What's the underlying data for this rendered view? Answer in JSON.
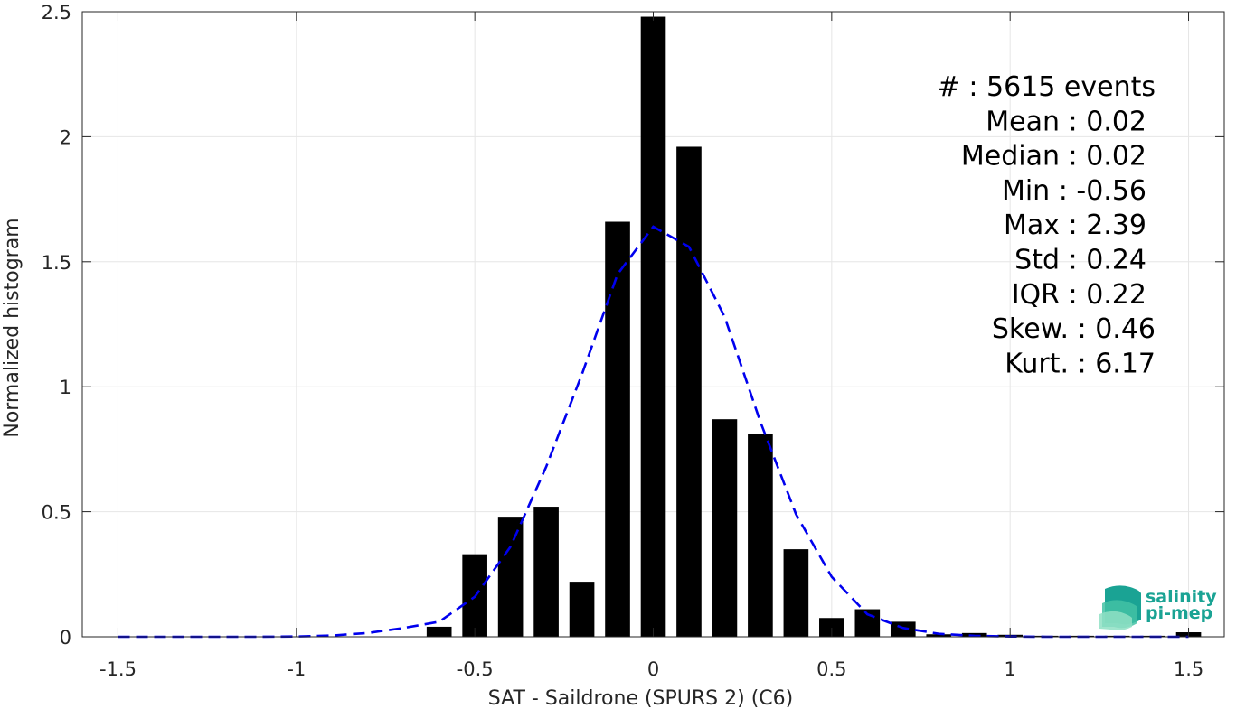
{
  "chart_data": {
    "type": "bar",
    "title": "",
    "xlabel": "SAT - Saildrone (SPURS 2) (C6)",
    "ylabel": "Normalized histogram",
    "xlim": [
      -1.6,
      1.6
    ],
    "ylim": [
      0,
      2.5
    ],
    "xticks": [
      -1.5,
      -1,
      -0.5,
      0,
      0.5,
      1,
      1.5
    ],
    "xtick_labels": [
      "-1.5",
      "-1",
      "-0.5",
      "0",
      "0.5",
      "1",
      "1.5"
    ],
    "yticks": [
      0,
      0.5,
      1,
      1.5,
      2,
      2.5
    ],
    "ytick_labels": [
      "0",
      "0.5",
      "1",
      "1.5",
      "2",
      "2.5"
    ],
    "grid": true,
    "bar_width": 0.07,
    "bars": {
      "x": [
        -0.6,
        -0.5,
        -0.4,
        -0.3,
        -0.2,
        -0.1,
        0.0,
        0.1,
        0.2,
        0.3,
        0.4,
        0.5,
        0.6,
        0.7,
        0.8,
        0.9,
        1.0,
        1.1,
        1.2,
        1.3,
        1.4,
        1.5
      ],
      "values": [
        0.04,
        0.33,
        0.48,
        0.52,
        0.22,
        1.66,
        2.48,
        1.96,
        0.87,
        0.81,
        0.35,
        0.075,
        0.11,
        0.06,
        0.01,
        0.015,
        0.008,
        0.004,
        0.004,
        0.004,
        0.004,
        0.018
      ],
      "color": "#000000"
    },
    "fit_curve": {
      "style": "dashed",
      "color": "#0000ee",
      "x": [
        -1.5,
        -1.4,
        -1.3,
        -1.2,
        -1.1,
        -1.0,
        -0.9,
        -0.8,
        -0.7,
        -0.6,
        -0.5,
        -0.4,
        -0.3,
        -0.2,
        -0.1,
        0.0,
        0.1,
        0.2,
        0.3,
        0.4,
        0.5,
        0.6,
        0.7,
        0.8,
        0.9,
        1.0,
        1.1,
        1.2,
        1.3,
        1.4,
        1.5
      ],
      "y": [
        0.0,
        0.0,
        0.0,
        0.0,
        0.0,
        0.001,
        0.005,
        0.015,
        0.035,
        0.06,
        0.16,
        0.36,
        0.68,
        1.05,
        1.45,
        1.64,
        1.56,
        1.28,
        0.86,
        0.49,
        0.24,
        0.09,
        0.035,
        0.012,
        0.004,
        0.001,
        0.0,
        0.0,
        0.0,
        0.0,
        0.0
      ]
    }
  },
  "stats": [
    "#  : 5615 events",
    "Mean : 0.02",
    "Median : 0.02",
    "Min : -0.56",
    "Max : 2.39",
    "Std : 0.24",
    "IQR : 0.22",
    "Skew. : 0.46",
    "Kurt. : 6.17"
  ],
  "logo": {
    "line1": "salinity",
    "line2": "pi-mep"
  },
  "colors": {
    "grid": "#e6e6e6",
    "axis": "#262626",
    "logo_teal": "#1aa394"
  }
}
